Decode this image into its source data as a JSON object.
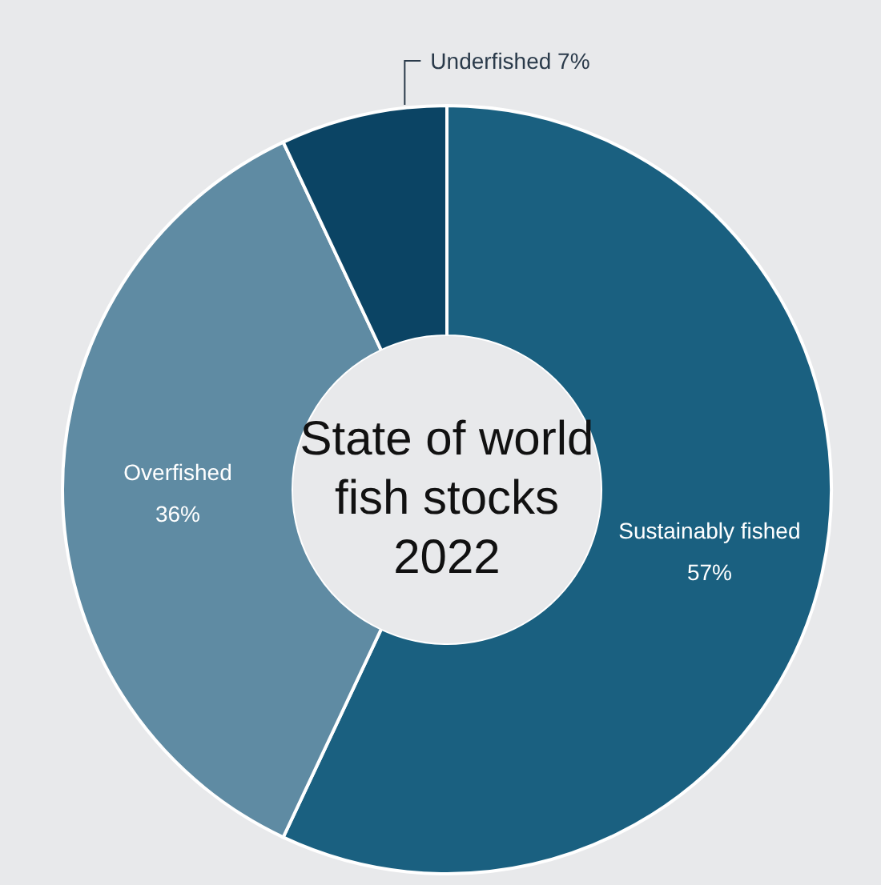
{
  "chart_data": {
    "type": "donut",
    "title": "State of world fish stocks 2022",
    "categories": [
      "Sustainably fished",
      "Overfished",
      "Underfished"
    ],
    "values": [
      57,
      36,
      7
    ],
    "colors": [
      "#1a6080",
      "#5f8ba3",
      "#0b4464"
    ],
    "value_labels": [
      "57%",
      "36%",
      "7%"
    ]
  }
}
